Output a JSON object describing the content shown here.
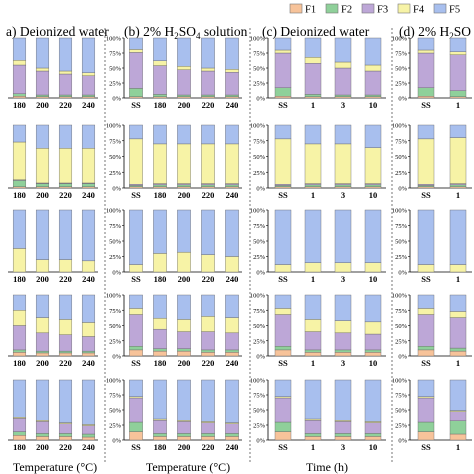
{
  "legend": {
    "items": [
      {
        "label": "F1",
        "color": "#f7c39a"
      },
      {
        "label": "F2",
        "color": "#8fd09a"
      },
      {
        "label": "F3",
        "color": "#bda7d7"
      },
      {
        "label": "F4",
        "color": "#f7f3a6"
      },
      {
        "label": "F5",
        "color": "#a8bfee"
      }
    ]
  },
  "panels": [
    {
      "id": "a",
      "title": "a) Deionized water",
      "xlabel": "Temperature (°C)"
    },
    {
      "id": "b",
      "title": "(b) 2% H2SO4 solution",
      "xlabel": "Temperature (°C)"
    },
    {
      "id": "c",
      "title": "(c) Deionized water",
      "xlabel": "Time (h)"
    },
    {
      "id": "d",
      "title": "(d) 2% H2SO",
      "xlabel": ""
    }
  ],
  "y_ticks": [
    "0%",
    "25%",
    "50%",
    "75%",
    "100%"
  ],
  "chart_data": {
    "type": "bar",
    "stacked": true,
    "series_names": [
      "F1",
      "F2",
      "F3",
      "F4",
      "F5"
    ],
    "ylim": [
      0,
      100
    ],
    "panels": [
      {
        "id": "a",
        "categories": [
          "180",
          "200",
          "220",
          "240"
        ],
        "rows": [
          [
            [
              3,
              4,
              48,
              8,
              37
            ],
            [
              2,
              3,
              40,
              5,
              50
            ],
            [
              2,
              3,
              35,
              5,
              55
            ],
            [
              2,
              3,
              32,
              5,
              58
            ]
          ],
          [
            [
              2,
              10,
              1,
              60,
              27
            ],
            [
              2,
              5,
              1,
              55,
              37
            ],
            [
              2,
              5,
              1,
              55,
              37
            ],
            [
              2,
              5,
              1,
              55,
              37
            ]
          ],
          [
            [
              0,
              0,
              0,
              38,
              62
            ],
            [
              0,
              0,
              0,
              20,
              80
            ],
            [
              0,
              0,
              0,
              20,
              80
            ],
            [
              0,
              0,
              0,
              18,
              82
            ]
          ],
          [
            [
              6,
              4,
              40,
              25,
              25
            ],
            [
              5,
              3,
              30,
              25,
              37
            ],
            [
              5,
              3,
              27,
              25,
              40
            ],
            [
              5,
              3,
              24,
              23,
              45
            ]
          ],
          [
            [
              8,
              6,
              22,
              2,
              62
            ],
            [
              6,
              5,
              20,
              2,
              67
            ],
            [
              6,
              5,
              16,
              2,
              71
            ],
            [
              5,
              5,
              14,
              2,
              74
            ]
          ]
        ]
      },
      {
        "id": "b",
        "categories": [
          "SS",
          "180",
          "200",
          "220",
          "240"
        ],
        "rows": [
          [
            [
              2,
              14,
              60,
              5,
              19
            ],
            [
              2,
              4,
              48,
              8,
              38
            ],
            [
              2,
              3,
              42,
              6,
              47
            ],
            [
              2,
              3,
              40,
              5,
              50
            ],
            [
              2,
              3,
              38,
              5,
              52
            ]
          ],
          [
            [
              2,
              2,
              2,
              72,
              22
            ],
            [
              2,
              3,
              2,
              63,
              30
            ],
            [
              2,
              3,
              2,
              63,
              30
            ],
            [
              2,
              3,
              2,
              63,
              30
            ],
            [
              2,
              3,
              2,
              63,
              30
            ]
          ],
          [
            [
              0,
              0,
              0,
              12,
              88
            ],
            [
              0,
              0,
              0,
              30,
              70
            ],
            [
              0,
              0,
              0,
              32,
              68
            ],
            [
              0,
              0,
              0,
              28,
              72
            ],
            [
              0,
              0,
              0,
              25,
              75
            ]
          ],
          [
            [
              10,
              6,
              52,
              10,
              22
            ],
            [
              8,
              4,
              32,
              18,
              38
            ],
            [
              8,
              4,
              28,
              20,
              40
            ],
            [
              6,
              4,
              30,
              25,
              35
            ],
            [
              6,
              4,
              28,
              25,
              37
            ]
          ],
          [
            [
              14,
              16,
              40,
              2,
              28
            ],
            [
              6,
              5,
              22,
              2,
              65
            ],
            [
              6,
              5,
              20,
              2,
              67
            ],
            [
              6,
              5,
              18,
              2,
              69
            ],
            [
              6,
              5,
              16,
              2,
              71
            ]
          ]
        ]
      },
      {
        "id": "c",
        "categories": [
          "SS",
          "1",
          "3",
          "10"
        ],
        "rows": [
          [
            [
              3,
              14,
              58,
              5,
              20
            ],
            [
              2,
              4,
              52,
              10,
              32
            ],
            [
              2,
              3,
              45,
              10,
              40
            ],
            [
              2,
              3,
              40,
              10,
              45
            ]
          ],
          [
            [
              2,
              2,
              2,
              72,
              22
            ],
            [
              2,
              3,
              2,
              63,
              30
            ],
            [
              2,
              3,
              2,
              63,
              30
            ],
            [
              2,
              3,
              2,
              57,
              36
            ]
          ],
          [
            [
              0,
              0,
              0,
              12,
              88
            ],
            [
              0,
              0,
              0,
              15,
              85
            ],
            [
              0,
              0,
              0,
              15,
              85
            ],
            [
              0,
              0,
              0,
              15,
              85
            ]
          ],
          [
            [
              10,
              6,
              52,
              10,
              22
            ],
            [
              6,
              4,
              30,
              20,
              40
            ],
            [
              6,
              4,
              28,
              20,
              42
            ],
            [
              6,
              4,
              26,
              20,
              44
            ]
          ],
          [
            [
              14,
              16,
              40,
              2,
              28
            ],
            [
              6,
              5,
              22,
              2,
              65
            ],
            [
              6,
              5,
              20,
              2,
              67
            ],
            [
              6,
              5,
              18,
              2,
              69
            ]
          ]
        ]
      },
      {
        "id": "d",
        "categories": [
          "SS",
          "1"
        ],
        "rows": [
          [
            [
              3,
              14,
              58,
              5,
              20
            ],
            [
              2,
              10,
              60,
              5,
              23
            ]
          ],
          [
            [
              2,
              2,
              2,
              72,
              22
            ],
            [
              2,
              3,
              2,
              73,
              20
            ]
          ],
          [
            [
              0,
              0,
              0,
              12,
              88
            ],
            [
              0,
              0,
              0,
              12,
              88
            ]
          ],
          [
            [
              10,
              6,
              52,
              10,
              22
            ],
            [
              8,
              5,
              50,
              10,
              27
            ]
          ],
          [
            [
              14,
              16,
              40,
              2,
              28
            ],
            [
              10,
              22,
              15,
              2,
              51
            ]
          ]
        ]
      }
    ]
  }
}
